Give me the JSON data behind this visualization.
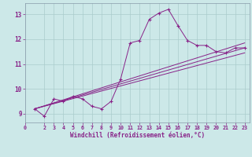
{
  "xlabel": "Windchill (Refroidissement éolien,°C)",
  "background_color": "#cce8e8",
  "line_color": "#882288",
  "grid_color": "#aacccc",
  "x_ticks": [
    0,
    2,
    3,
    4,
    5,
    6,
    7,
    8,
    9,
    10,
    11,
    12,
    13,
    14,
    15,
    16,
    17,
    18,
    19,
    20,
    21,
    22,
    23
  ],
  "y_ticks": [
    9,
    10,
    11,
    12,
    13
  ],
  "xlim": [
    0,
    23.5
  ],
  "ylim": [
    8.65,
    13.45
  ],
  "main_series_x": [
    1,
    2,
    3,
    4,
    5,
    6,
    7,
    8,
    9,
    10,
    11,
    12,
    13,
    14,
    15,
    16,
    17,
    18,
    19,
    20,
    21,
    22,
    23
  ],
  "main_series_y": [
    9.2,
    8.9,
    9.6,
    9.5,
    9.7,
    9.6,
    9.3,
    9.2,
    9.5,
    10.4,
    11.85,
    11.95,
    12.8,
    13.05,
    13.2,
    12.55,
    11.95,
    11.75,
    11.75,
    11.5,
    11.45,
    11.65,
    11.65
  ],
  "line1_x": [
    1,
    23
  ],
  "line1_y": [
    9.2,
    11.85
  ],
  "line2_x": [
    1,
    23
  ],
  "line2_y": [
    9.2,
    11.65
  ],
  "line3_x": [
    1,
    23
  ],
  "line3_y": [
    9.2,
    11.45
  ]
}
